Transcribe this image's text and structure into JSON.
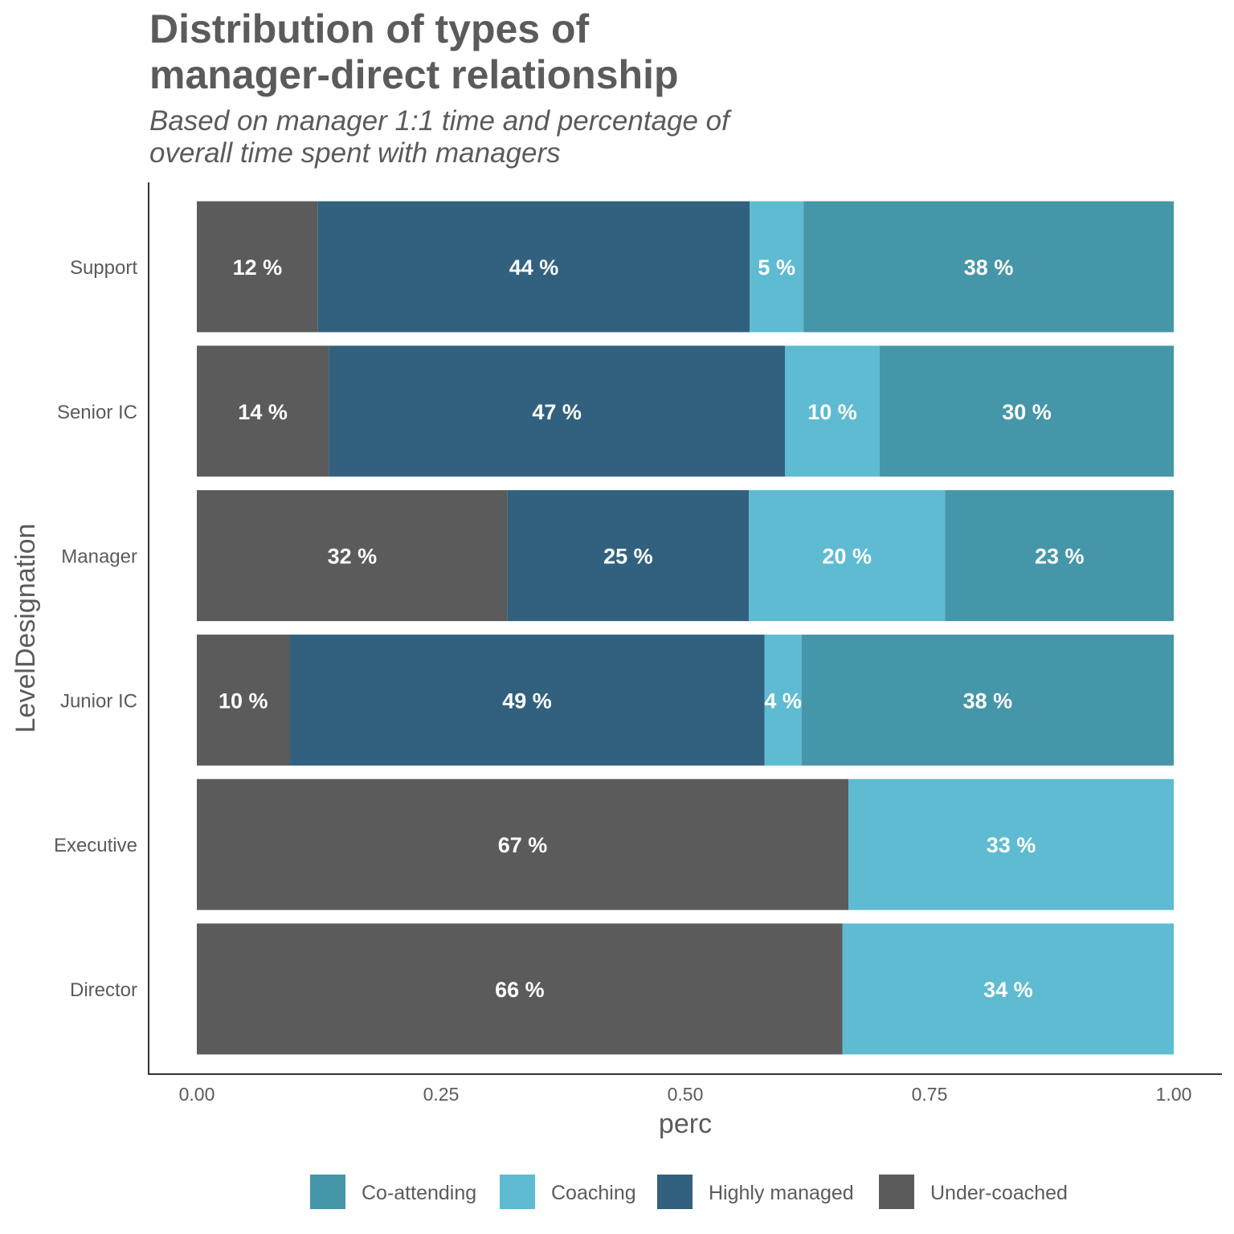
{
  "chart_data": {
    "type": "bar",
    "orientation": "horizontal",
    "stacked": true,
    "title": "Distribution of types of manager-direct relationship",
    "title_lines": [
      "Distribution of types of",
      "manager-direct relationship"
    ],
    "subtitle": "Based on manager 1:1 time and percentage of overall time spent with managers",
    "subtitle_lines": [
      "Based on manager 1:1 time and percentage of",
      "overall time spent with managers"
    ],
    "xlabel": "perc",
    "ylabel": "LevelDesignation",
    "xlim": [
      0,
      1
    ],
    "xticks": [
      "0.00",
      "0.25",
      "0.50",
      "0.75",
      "1.00"
    ],
    "grid": false,
    "legend_position": "bottom",
    "categories": [
      "Support",
      "Senior IC",
      "Manager",
      "Junior IC",
      "Executive",
      "Director"
    ],
    "series": [
      {
        "name": "Under-coached",
        "color": "#5b5b5b",
        "values": [
          0.124,
          0.135,
          0.318,
          0.095,
          0.667,
          0.661
        ],
        "labels": [
          "12 %",
          "14 %",
          "32 %",
          "10 %",
          "67 %",
          "66 %"
        ]
      },
      {
        "name": "Highly managed",
        "color": "#32617f",
        "values": [
          0.442,
          0.467,
          0.247,
          0.486,
          0,
          0
        ],
        "labels": [
          "44 %",
          "47 %",
          "25 %",
          "49 %",
          "",
          ""
        ]
      },
      {
        "name": "Coaching",
        "color": "#5ebbd2",
        "values": [
          0.055,
          0.097,
          0.201,
          0.038,
          0.333,
          0.339
        ],
        "labels": [
          "5 %",
          "10 %",
          "20 %",
          "4 %",
          "33 %",
          "34 %"
        ]
      },
      {
        "name": "Co-attending",
        "color": "#4596a8",
        "values": [
          0.379,
          0.301,
          0.234,
          0.381,
          0,
          0
        ],
        "labels": [
          "38 %",
          "30 %",
          "23 %",
          "38 %",
          "",
          ""
        ]
      }
    ],
    "legend": [
      "Co-attending",
      "Coaching",
      "Highly managed",
      "Under-coached"
    ]
  },
  "colors": {
    "Co-attending": "#4596a8",
    "Coaching": "#5ebbd2",
    "Highly managed": "#32617f",
    "Under-coached": "#5b5b5b",
    "text": "#5b5b5b",
    "axis": "#333333"
  }
}
